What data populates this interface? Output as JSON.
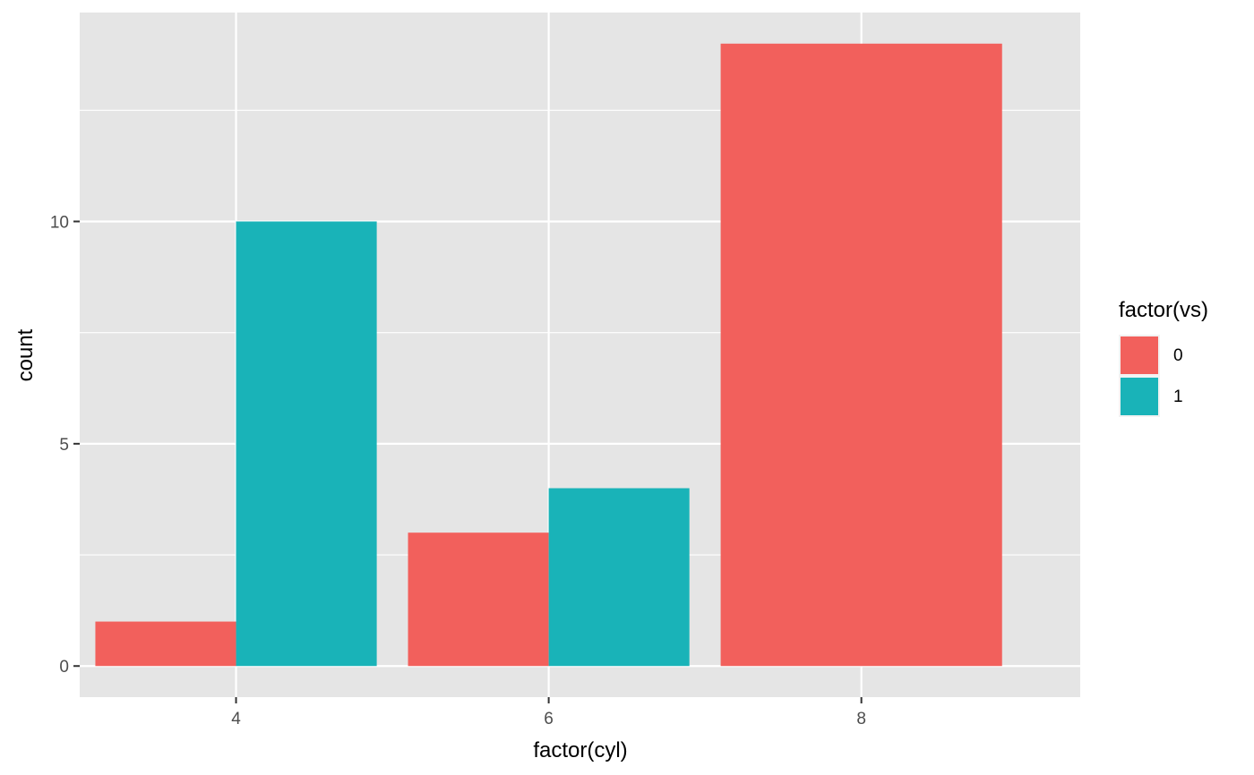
{
  "chart_data": {
    "type": "bar",
    "categories": [
      "4",
      "6",
      "8"
    ],
    "series": [
      {
        "name": "0",
        "values": [
          1,
          3,
          14
        ],
        "color": "#F2605C"
      },
      {
        "name": "1",
        "values": [
          10,
          4,
          0
        ],
        "color": "#19B3B8"
      }
    ],
    "xlabel": "factor(cyl)",
    "ylabel": "count",
    "xlim": [
      3,
      9.4
    ],
    "x_ticks": [
      4,
      6,
      8
    ],
    "y_ticks": [
      0,
      5,
      10
    ],
    "ylim": [
      -0.7,
      14.7
    ],
    "legend": {
      "title": "factor(vs)",
      "entries": [
        "0",
        "1"
      ],
      "position": "right"
    },
    "grid": true,
    "panel_background": "#E5E5E5",
    "grid_color": "#FFFFFF"
  }
}
